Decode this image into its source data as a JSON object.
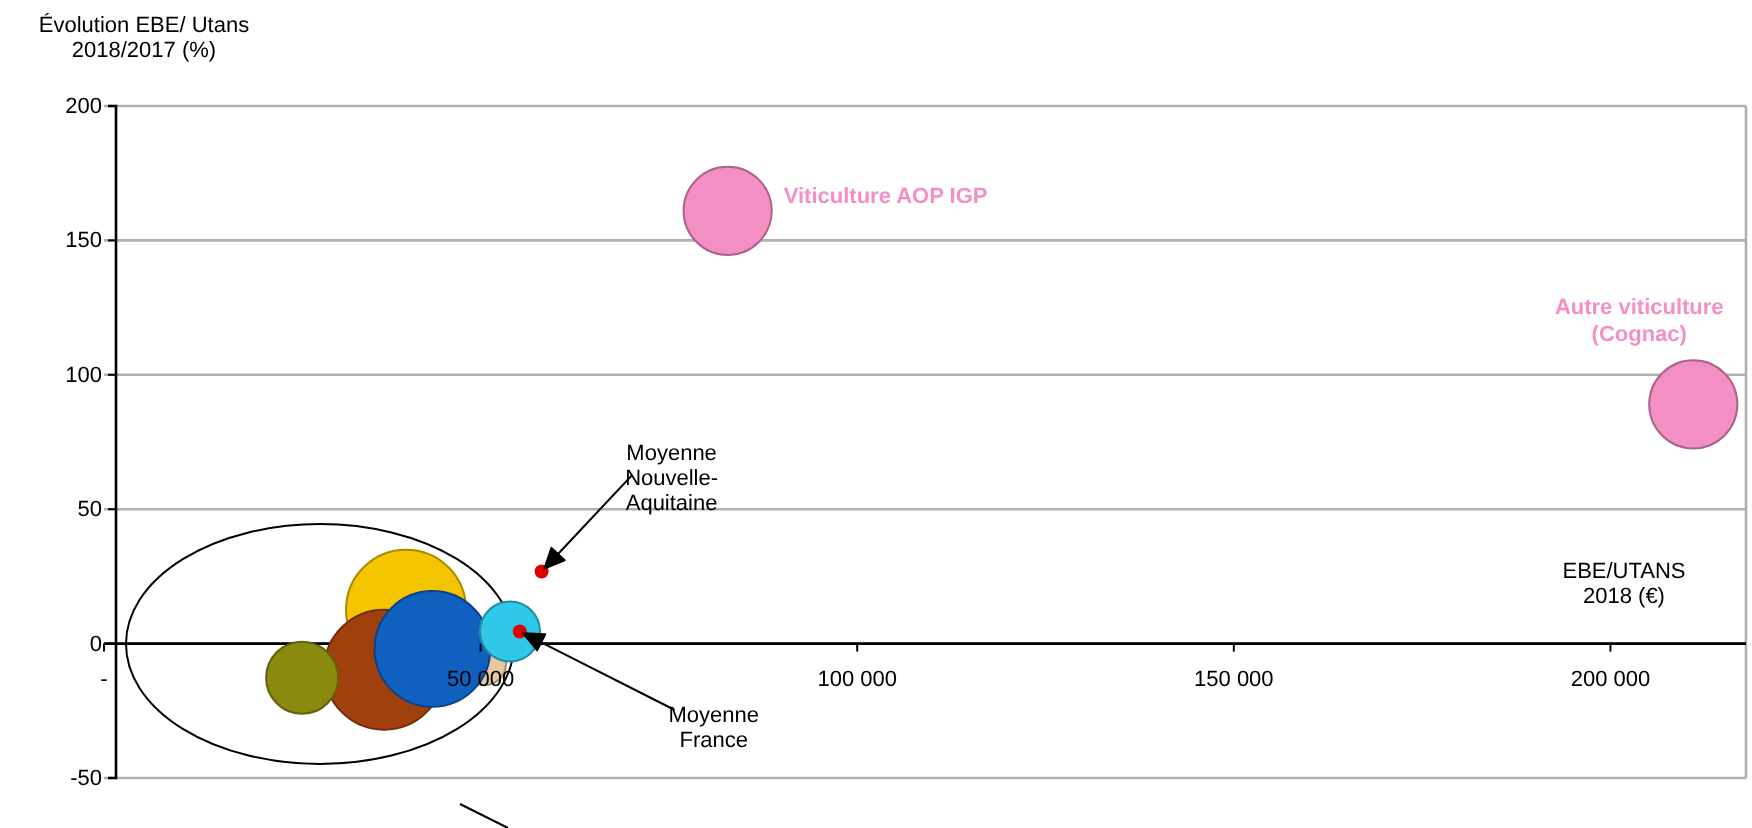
{
  "chart_data": {
    "type": "bubble",
    "ylabel": "Évolution EBE/ Utans\n2018/2017 (%)",
    "xlabel": "EBE/UTANS\n2018 (€)",
    "xlim": [
      0,
      218000
    ],
    "ylim": [
      -50,
      200
    ],
    "xticks": [
      {
        "value": 0,
        "label": "-"
      },
      {
        "value": 50000,
        "label": "50 000"
      },
      {
        "value": 100000,
        "label": "100 000"
      },
      {
        "value": 150000,
        "label": "150 000"
      },
      {
        "value": 200000,
        "label": "200 000"
      }
    ],
    "yticks": [
      -50,
      0,
      50,
      100,
      150,
      200
    ],
    "grid": "y",
    "series": [
      {
        "color": "#f5c400",
        "x": [
          40100
        ],
        "values": [
          12.6
        ],
        "sizes": [
          1
        ]
      },
      {
        "color": "#a0400c",
        "x": [
          37200
        ],
        "values": [
          -9.7
        ],
        "sizes": [
          1
        ]
      },
      {
        "color": "#8a8a10",
        "x": [
          26300
        ],
        "values": [
          -12.7
        ],
        "sizes": [
          0.36
        ]
      },
      {
        "color": "#e8c8a0",
        "x": [
          50500
        ],
        "values": [
          -7.4
        ],
        "sizes": [
          0.13
        ]
      },
      {
        "color": "#1060c0",
        "x": [
          43600
        ],
        "values": [
          -2
        ],
        "sizes": [
          0.93
        ]
      },
      {
        "color": "#30c8e8",
        "x": [
          53900
        ],
        "values": [
          4.5
        ],
        "sizes": [
          0.25
        ]
      },
      {
        "name": "Viticulture AOP IGP",
        "color": "#f48fc4",
        "x": [
          82800
        ],
        "values": [
          161
        ],
        "sizes": [
          0.54
        ]
      },
      {
        "name": "Autre viticulture\n(Cognac)",
        "color": "#f48fc4",
        "x": [
          211000
        ],
        "values": [
          89
        ],
        "sizes": [
          0.54
        ]
      },
      {
        "type": "scatter",
        "color": "#e00000",
        "x": [
          58100,
          55200
        ],
        "values": [
          26.8,
          4.5
        ]
      }
    ],
    "annotations": [
      "Moyenne\nNouvelle-\nAquitaine",
      "Moyenne\nFrance"
    ]
  }
}
